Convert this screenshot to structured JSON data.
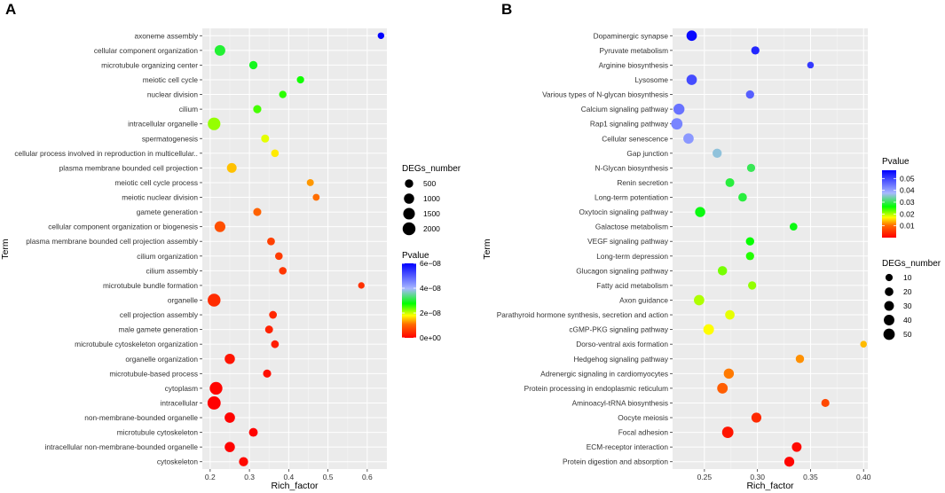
{
  "chart_data": [
    {
      "panel_label": "A",
      "type": "scatter",
      "xlabel": "Rich_factor",
      "ylabel": "Term",
      "xlim": [
        0.18,
        0.65
      ],
      "xticks": [
        0.2,
        0.3,
        0.4,
        0.5,
        0.6
      ],
      "xtick_labels": [
        "0.2",
        "0.3",
        "0.4",
        "0.5",
        "0.6"
      ],
      "size_legend": {
        "title": "DEGs_number",
        "values": [
          500,
          1000,
          1500,
          2000
        ],
        "labels": [
          "500",
          "1000",
          "1500",
          "2000"
        ],
        "max": 2300
      },
      "color_legend": {
        "title": "Pvalue",
        "min": 0,
        "max": 6e-08,
        "ticks": [
          0,
          2e-08,
          4e-08,
          6e-08
        ],
        "labels": [
          "0e+00",
          "2e−08",
          "4e−08",
          "6e−08"
        ]
      },
      "points": [
        {
          "term": "axoneme assembly",
          "rich": 0.635,
          "degs": 180,
          "p": 6e-08
        },
        {
          "term": "cellular component organization",
          "rich": 0.225,
          "degs": 1150,
          "p": 3e-08
        },
        {
          "term": "microtubule organizing center",
          "rich": 0.31,
          "degs": 480,
          "p": 2.9e-08
        },
        {
          "term": "meiotic cell cycle",
          "rich": 0.43,
          "degs": 300,
          "p": 2.7e-08
        },
        {
          "term": "nuclear division",
          "rich": 0.385,
          "degs": 320,
          "p": 2.6e-08
        },
        {
          "term": "cilium",
          "rich": 0.32,
          "degs": 450,
          "p": 2.5e-08
        },
        {
          "term": "intracellular organelle",
          "rich": 0.21,
          "degs": 1900,
          "p": 2.2e-08
        },
        {
          "term": "spermatogenesis",
          "rich": 0.34,
          "degs": 420,
          "p": 1.9e-08
        },
        {
          "term": "cellular process involved in reproduction in multicellular..",
          "rich": 0.365,
          "degs": 360,
          "p": 1.7e-08
        },
        {
          "term": "plasma membrane bounded cell projection",
          "rich": 0.255,
          "degs": 850,
          "p": 1.5e-08
        },
        {
          "term": "meiotic cell cycle process",
          "rich": 0.455,
          "degs": 250,
          "p": 1.3e-08
        },
        {
          "term": "meiotic nuclear division",
          "rich": 0.47,
          "degs": 230,
          "p": 1.1e-08
        },
        {
          "term": "gamete generation",
          "rich": 0.32,
          "degs": 430,
          "p": 1e-08
        },
        {
          "term": "cellular component organization or biogenesis",
          "rich": 0.225,
          "degs": 1200,
          "p": 8e-09
        },
        {
          "term": "plasma membrane bounded cell projection assembly",
          "rich": 0.355,
          "degs": 380,
          "p": 6.5e-09
        },
        {
          "term": "cilium organization",
          "rich": 0.375,
          "degs": 350,
          "p": 6e-09
        },
        {
          "term": "cilium assembly",
          "rich": 0.385,
          "degs": 340,
          "p": 5.5e-09
        },
        {
          "term": "microtubule bundle formation",
          "rich": 0.585,
          "degs": 170,
          "p": 5e-09
        },
        {
          "term": "organelle",
          "rich": 0.21,
          "degs": 2000,
          "p": 4.5e-09
        },
        {
          "term": "cell projection assembly",
          "rich": 0.36,
          "degs": 380,
          "p": 4e-09
        },
        {
          "term": "male gamete generation",
          "rich": 0.35,
          "degs": 400,
          "p": 3.5e-09
        },
        {
          "term": "microtubule cytoskeleton organization",
          "rich": 0.365,
          "degs": 380,
          "p": 3e-09
        },
        {
          "term": "organelle organization",
          "rich": 0.25,
          "degs": 1000,
          "p": 2e-09
        },
        {
          "term": "microtubule-based process",
          "rich": 0.345,
          "degs": 450,
          "p": 1.5e-09
        },
        {
          "term": "cytoplasm",
          "rich": 0.215,
          "degs": 1950,
          "p": 5e-10
        },
        {
          "term": "intracellular",
          "rich": 0.21,
          "degs": 2150,
          "p": 1e-10
        },
        {
          "term": "non-membrane-bounded organelle",
          "rich": 0.25,
          "degs": 1050,
          "p": 3e-10
        },
        {
          "term": "microtubule cytoskeleton",
          "rich": 0.31,
          "degs": 600,
          "p": 3e-10
        },
        {
          "term": "intracellular non-membrane-bounded organelle",
          "rich": 0.25,
          "degs": 1000,
          "p": 3e-10
        },
        {
          "term": "cytoskeleton",
          "rich": 0.285,
          "degs": 700,
          "p": 1e-09
        }
      ]
    },
    {
      "panel_label": "B",
      "type": "scatter",
      "xlabel": "Rich_factor",
      "ylabel": "Term",
      "xlim": [
        0.22,
        0.404
      ],
      "xticks": [
        0.25,
        0.3,
        0.35,
        0.4
      ],
      "xtick_labels": [
        "0.25",
        "0.30",
        "0.35",
        "0.40"
      ],
      "size_legend": {
        "title": "DEGs_number",
        "values": [
          10,
          20,
          30,
          40,
          50
        ],
        "labels": [
          "10",
          "20",
          "30",
          "40",
          "50"
        ],
        "max": 55
      },
      "color_legend": {
        "title": "Pvalue",
        "min": 0,
        "max": 0.057,
        "ticks": [
          0.01,
          0.02,
          0.03,
          0.04,
          0.05
        ],
        "labels": [
          "0.01",
          "0.02",
          "0.03",
          "0.04",
          "0.05"
        ]
      },
      "points": [
        {
          "term": "Dopaminergic synapse",
          "rich": 0.238,
          "degs": 38,
          "p": 0.056
        },
        {
          "term": "Pyruvate metabolism",
          "rich": 0.298,
          "degs": 17,
          "p": 0.053
        },
        {
          "term": "Arginine biosynthesis",
          "rich": 0.35,
          "degs": 7,
          "p": 0.051
        },
        {
          "term": "Lysosome",
          "rich": 0.238,
          "degs": 38,
          "p": 0.049
        },
        {
          "term": "Various types of N-glycan biosynthesis",
          "rich": 0.293,
          "degs": 17,
          "p": 0.047
        },
        {
          "term": "Calcium signaling pathway",
          "rich": 0.226,
          "degs": 46,
          "p": 0.045
        },
        {
          "term": "Rap1 signaling pathway",
          "rich": 0.224,
          "degs": 50,
          "p": 0.043
        },
        {
          "term": "Cellular senescence",
          "rich": 0.235,
          "degs": 38,
          "p": 0.041
        },
        {
          "term": "Gap junction",
          "rich": 0.262,
          "degs": 25,
          "p": 0.036
        },
        {
          "term": "N-Glycan biosynthesis",
          "rich": 0.294,
          "degs": 17,
          "p": 0.03
        },
        {
          "term": "Renin secretion",
          "rich": 0.274,
          "degs": 22,
          "p": 0.029
        },
        {
          "term": "Long-term potentiation",
          "rich": 0.286,
          "degs": 20,
          "p": 0.029
        },
        {
          "term": "Oxytocin signaling pathway",
          "rich": 0.246,
          "degs": 35,
          "p": 0.027
        },
        {
          "term": "Galactose metabolism",
          "rich": 0.334,
          "degs": 13,
          "p": 0.027
        },
        {
          "term": "VEGF signaling pathway",
          "rich": 0.293,
          "degs": 18,
          "p": 0.026
        },
        {
          "term": "Long-term depression",
          "rich": 0.293,
          "degs": 17,
          "p": 0.025
        },
        {
          "term": "Glucagon signaling pathway",
          "rich": 0.267,
          "degs": 26,
          "p": 0.022
        },
        {
          "term": "Fatty acid metabolism",
          "rich": 0.295,
          "degs": 17,
          "p": 0.021
        },
        {
          "term": "Axon guidance",
          "rich": 0.245,
          "degs": 38,
          "p": 0.02
        },
        {
          "term": "Parathyroid hormone synthesis, secretion and action",
          "rich": 0.274,
          "degs": 28,
          "p": 0.018
        },
        {
          "term": "cGMP-PKG signaling pathway",
          "rich": 0.254,
          "degs": 40,
          "p": 0.017
        },
        {
          "term": "Dorso-ventral axis formation",
          "rich": 0.4,
          "degs": 7,
          "p": 0.014
        },
        {
          "term": "Hedgehog signaling pathway",
          "rich": 0.34,
          "degs": 18,
          "p": 0.012
        },
        {
          "term": "Adrenergic signaling in cardiomyocytes",
          "rich": 0.273,
          "degs": 35,
          "p": 0.011
        },
        {
          "term": "Protein processing in endoplasmic reticulum",
          "rich": 0.267,
          "degs": 40,
          "p": 0.009
        },
        {
          "term": "Aminoacyl-tRNA biosynthesis",
          "rich": 0.364,
          "degs": 16,
          "p": 0.007
        },
        {
          "term": "Oocyte meiosis",
          "rich": 0.299,
          "degs": 33,
          "p": 0.004
        },
        {
          "term": "Focal adhesion",
          "rich": 0.272,
          "degs": 50,
          "p": 0.002
        },
        {
          "term": "ECM-receptor interaction",
          "rich": 0.337,
          "degs": 30,
          "p": 0.001
        },
        {
          "term": "Protein digestion and absorption",
          "rich": 0.33,
          "degs": 33,
          "p": 0.0005
        }
      ]
    }
  ]
}
